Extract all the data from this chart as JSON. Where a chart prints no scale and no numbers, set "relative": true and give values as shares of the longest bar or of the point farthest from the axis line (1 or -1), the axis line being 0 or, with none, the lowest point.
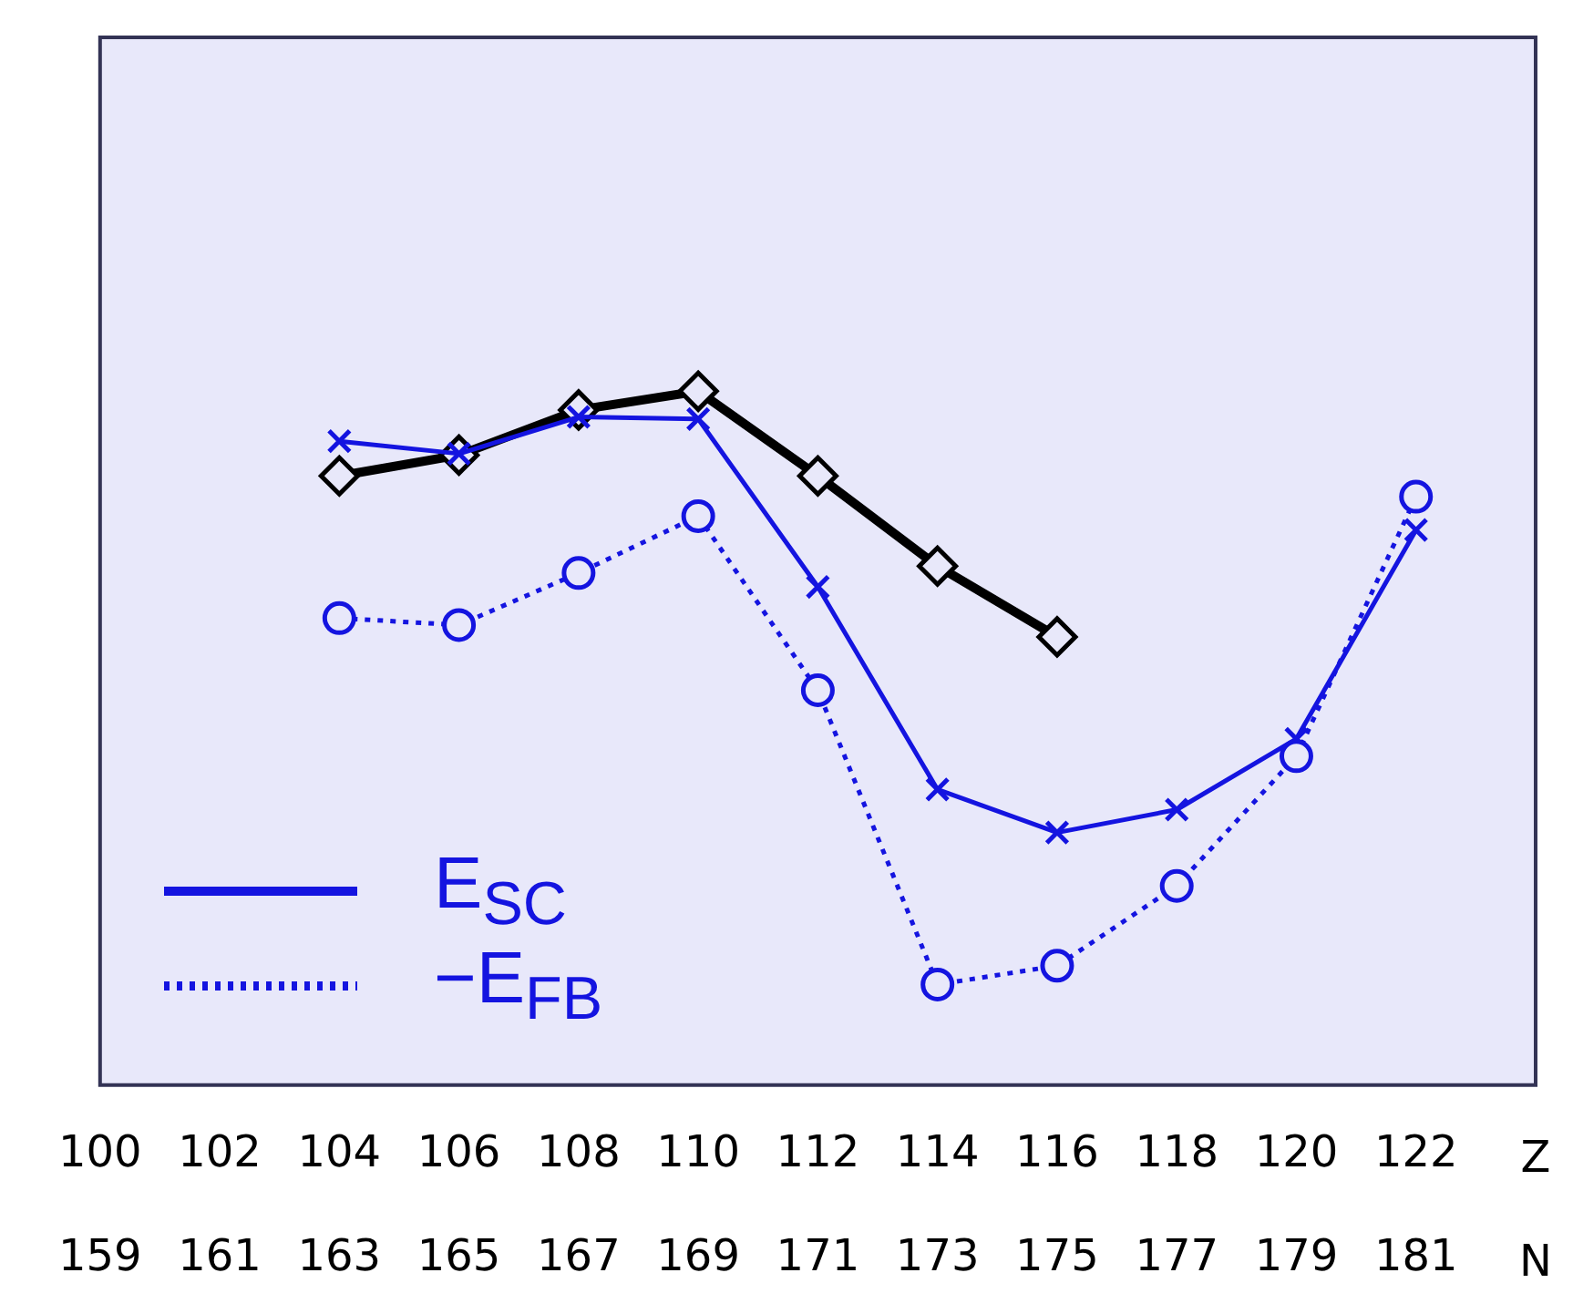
{
  "chart_data": {
    "type": "line",
    "relative": true,
    "xlabel": "Z",
    "x2label": "N",
    "x": [
      104,
      106,
      108,
      110,
      112,
      114,
      116,
      118,
      120,
      122
    ],
    "xlim": [
      100,
      124
    ],
    "xticks": [
      100,
      102,
      104,
      106,
      108,
      110,
      112,
      114,
      116,
      118,
      120,
      122
    ],
    "x2lim": [
      159,
      183
    ],
    "x2ticks": [
      159,
      161,
      163,
      165,
      167,
      169,
      171,
      173,
      175,
      177,
      179,
      181
    ],
    "series": [
      {
        "color": "#000000",
        "marker": "diamond",
        "line_style": "solid",
        "values": [
          0.878,
          0.908,
          0.973,
          1,
          0.878,
          0.748,
          0.646,
          null,
          null,
          null
        ]
      },
      {
        "name": "E$_{SC}$",
        "color": "#1414e0",
        "marker": "cross",
        "line_style": "solid",
        "values": [
          0.928,
          0.91,
          0.963,
          0.96,
          0.718,
          0.426,
          0.364,
          0.397,
          0.499,
          0.8
        ]
      },
      {
        "name": "−E$_{FB}$",
        "color": "#1414e0",
        "marker": "circle",
        "line_style": "dotted",
        "values": [
          0.673,
          0.663,
          0.738,
          0.82,
          0.569,
          0.145,
          0.172,
          0.287,
          0.474,
          0.848
        ]
      }
    ],
    "legend": "bottom left",
    "grid": false
  }
}
